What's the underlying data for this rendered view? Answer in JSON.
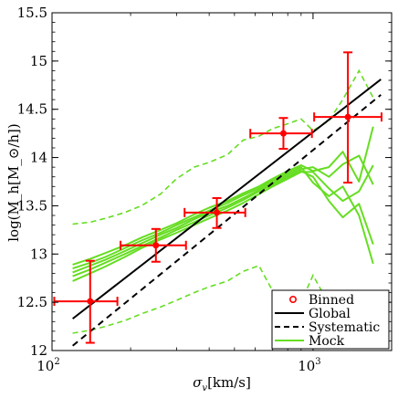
{
  "chart_data": {
    "type": "line",
    "xscale": "log",
    "xlim": [
      100,
      2000
    ],
    "ylim": [
      12,
      15.5
    ],
    "xlabel_parts": {
      "base": "σ",
      "sub": "v",
      "rest": "[km/s]"
    },
    "ylabel": "log(M_h[M_⊙/h])",
    "x_tick_labels": [
      {
        "value": 100,
        "base": "10",
        "exp": "2"
      },
      {
        "value": 1000,
        "base": "10",
        "exp": "3"
      }
    ],
    "y_ticks": [
      12,
      12.5,
      13,
      13.5,
      14,
      14.5,
      15,
      15.5
    ],
    "y_tick_labels": [
      "12",
      "12.5",
      "13",
      "13.5",
      "14",
      "14.5",
      "15",
      "15.5"
    ],
    "colors": {
      "binned": "#ff0000",
      "mock": "#66dd22",
      "global": "#000000"
    },
    "series": [
      {
        "name": "Binned",
        "style": "errorbar",
        "points": [
          {
            "x": 140,
            "y": 12.51,
            "xlo": 102,
            "xhi": 178,
            "ylo": 12.08,
            "yhi": 12.93
          },
          {
            "x": 250,
            "y": 13.09,
            "xlo": 183,
            "xhi": 326,
            "ylo": 12.92,
            "yhi": 13.26
          },
          {
            "x": 428,
            "y": 13.43,
            "xlo": 322,
            "xhi": 550,
            "ylo": 13.27,
            "yhi": 13.58
          },
          {
            "x": 770,
            "y": 14.25,
            "xlo": 575,
            "xhi": 990,
            "ylo": 14.09,
            "yhi": 14.41
          },
          {
            "x": 1360,
            "y": 14.42,
            "xlo": 1010,
            "xhi": 1830,
            "ylo": 13.74,
            "yhi": 15.09
          }
        ]
      },
      {
        "name": "Global",
        "style": "solid",
        "points": [
          {
            "x": 120,
            "y": 12.33
          },
          {
            "x": 1820,
            "y": 14.81
          }
        ]
      },
      {
        "name": "Systematic",
        "style": "dashed",
        "points": [
          {
            "x": 120,
            "y": 12.05
          },
          {
            "x": 1820,
            "y": 14.65
          }
        ]
      },
      {
        "name": "Mock",
        "style": "band",
        "x": [
          120,
          140,
          160,
          190,
          220,
          260,
          300,
          350,
          400,
          470,
          540,
          620,
          700,
          800,
          900,
          1000,
          1150,
          1300,
          1500,
          1700
        ],
        "curves": [
          [
            12.72,
            12.8,
            12.87,
            12.97,
            13.06,
            13.15,
            13.22,
            13.3,
            13.37,
            13.45,
            13.53,
            13.62,
            13.7,
            13.78,
            13.85,
            13.85,
            13.68,
            13.55,
            13.65,
            13.92
          ],
          [
            12.77,
            12.84,
            12.91,
            13.0,
            13.08,
            13.17,
            13.25,
            13.33,
            13.4,
            13.48,
            13.56,
            13.65,
            13.72,
            13.8,
            13.86,
            13.8,
            13.55,
            13.38,
            13.52,
            13.1
          ],
          [
            12.81,
            12.88,
            12.94,
            13.03,
            13.11,
            13.2,
            13.27,
            13.36,
            13.43,
            13.5,
            13.58,
            13.66,
            13.74,
            13.82,
            13.88,
            13.9,
            13.8,
            13.93,
            14.02,
            13.72
          ],
          [
            12.85,
            12.91,
            12.97,
            13.06,
            13.14,
            13.22,
            13.3,
            13.38,
            13.45,
            13.53,
            13.61,
            13.68,
            13.76,
            13.84,
            13.9,
            13.74,
            13.6,
            13.7,
            13.4,
            12.9
          ],
          [
            12.89,
            12.95,
            13.01,
            13.09,
            13.17,
            13.25,
            13.32,
            13.41,
            13.48,
            13.55,
            13.63,
            13.7,
            13.78,
            13.86,
            13.92,
            13.86,
            13.9,
            14.06,
            13.75,
            14.32
          ]
        ],
        "upper": [
          13.31,
          13.33,
          13.37,
          13.43,
          13.5,
          13.62,
          13.78,
          13.9,
          13.95,
          14.03,
          14.18,
          14.22,
          14.3,
          14.35,
          14.4,
          14.28,
          14.38,
          14.6,
          14.9,
          14.62
        ],
        "lower": [
          12.18,
          12.21,
          12.25,
          12.31,
          12.38,
          12.45,
          12.52,
          12.6,
          12.66,
          12.72,
          12.82,
          12.88,
          12.62,
          12.58,
          12.5,
          12.78,
          12.48,
          12.35,
          12.52,
          12.3
        ]
      }
    ],
    "legend": {
      "position": "bottom-right",
      "entries": [
        {
          "label": "Binned",
          "style": "marker"
        },
        {
          "label": "Global",
          "style": "solid"
        },
        {
          "label": "Systematic",
          "style": "dashed"
        },
        {
          "label": "Mock",
          "style": "mock"
        }
      ]
    }
  }
}
